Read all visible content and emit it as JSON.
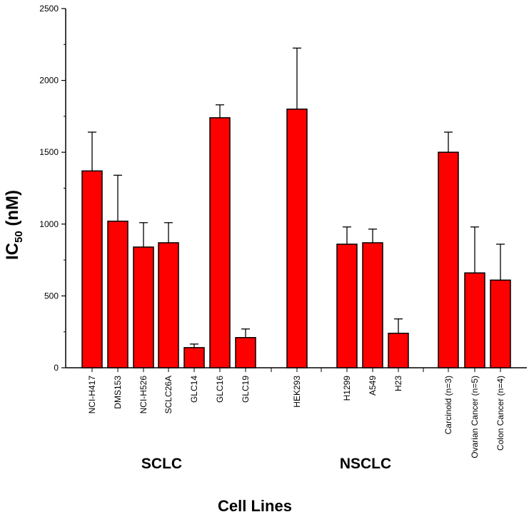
{
  "chart_data": {
    "type": "bar",
    "title": "",
    "xlabel": "Cell Lines",
    "ylabel_main": "IC",
    "ylabel_sub": "50",
    "ylabel_unit": " (nM)",
    "ylim": [
      0,
      2500
    ],
    "y_ticks": [
      0,
      500,
      1000,
      1500,
      2000,
      2500
    ],
    "grid": false,
    "legend": "none",
    "bar_color": "#ff0000",
    "bar_edge_color": "#000000",
    "categories": [
      "NCI-H417",
      "DMS153",
      "NCI-H526",
      "SCLC26A",
      "GLC14",
      "GLC16",
      "GLC19",
      "HEK293",
      "H1299",
      "A549",
      "H23",
      "Carcinoid (n=3)",
      "Ovarian Cancer (n=5)",
      "Colon Cancer (n=4)"
    ],
    "values": [
      1370,
      1020,
      840,
      870,
      140,
      1740,
      210,
      1800,
      860,
      870,
      240,
      1500,
      660,
      610
    ],
    "error_plus": [
      270,
      320,
      170,
      140,
      25,
      90,
      60,
      425,
      120,
      95,
      100,
      140,
      320,
      250
    ],
    "groups": [
      {
        "label": "SCLC",
        "members": [
          0,
          1,
          2,
          3,
          4,
          5,
          6
        ]
      },
      {
        "label": "",
        "members": [
          7
        ]
      },
      {
        "label": "NSCLC",
        "members": [
          8,
          9,
          10
        ]
      },
      {
        "label": "",
        "members": [
          11,
          12,
          13
        ]
      }
    ]
  }
}
